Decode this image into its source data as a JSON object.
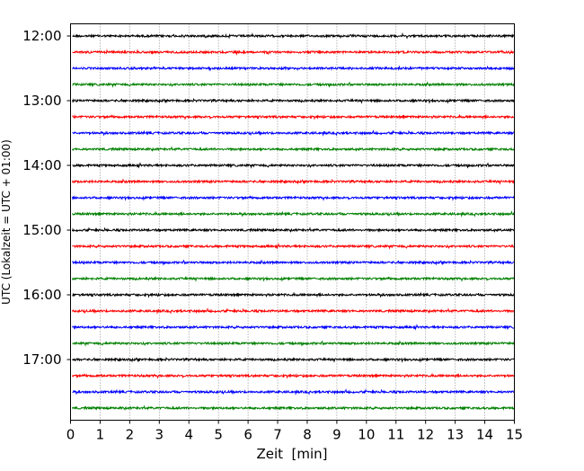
{
  "chart_data": {
    "type": "line",
    "subtype": "helicorder",
    "xlabel": "Zeit  [min]",
    "ylabel": "UTC (Lokalzeit = UTC + 01:00)",
    "xlim": [
      0,
      15
    ],
    "xticks": [
      "0",
      "1",
      "2",
      "3",
      "4",
      "5",
      "6",
      "7",
      "8",
      "9",
      "10",
      "11",
      "12",
      "13",
      "14",
      "15"
    ],
    "yticks": [
      "12:00",
      "13:00",
      "14:00",
      "15:00",
      "16:00",
      "17:00"
    ],
    "grid": "vertical dotted",
    "trace_colors": [
      "#000000",
      "#ff0000",
      "#0000ff",
      "#008000"
    ],
    "trace_interval_min": 15,
    "traces": [
      "12:00",
      "12:15",
      "12:30",
      "12:45",
      "13:00",
      "13:15",
      "13:30",
      "13:45",
      "14:00",
      "14:15",
      "14:30",
      "14:45",
      "15:00",
      "15:15",
      "15:30",
      "15:45",
      "16:00",
      "16:15",
      "16:30",
      "16:45",
      "17:00",
      "17:15",
      "17:30",
      "17:45"
    ]
  }
}
